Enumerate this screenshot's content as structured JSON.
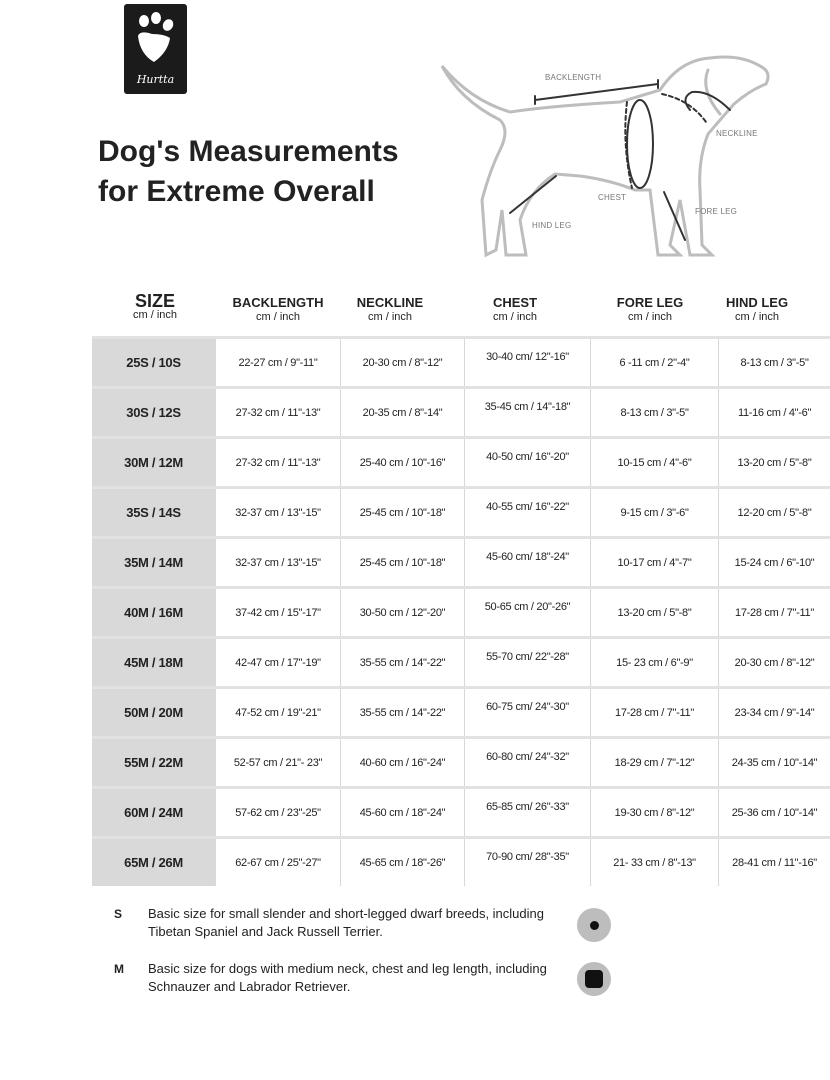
{
  "logo": {
    "brand": "Hurtta"
  },
  "title": {
    "line1": "Dog's Measurements",
    "line2": "for Extreme Overall"
  },
  "diagram_labels": {
    "backlength": "BACKLENGTH",
    "neckline": "NECKLINE",
    "chest": "CHEST",
    "fore_leg": "FORE LEG",
    "hind_leg": "HIND LEG"
  },
  "table": {
    "headers": [
      {
        "label": "SIZE",
        "unit": "cm / inch"
      },
      {
        "label": "BACKLENGTH",
        "unit": "cm / inch"
      },
      {
        "label": "NECKLINE",
        "unit": "cm / inch"
      },
      {
        "label": "CHEST",
        "unit": "cm / inch"
      },
      {
        "label": "FORE LEG",
        "unit": "cm / inch"
      },
      {
        "label": "HIND LEG",
        "unit": "cm / inch"
      }
    ],
    "rows": [
      [
        "25S / 10S",
        "22-27 cm / 9\"-11\"",
        "20-30 cm / 8\"-12\"",
        "30-40 cm/ 12\"-16\"",
        "6 -11 cm / 2\"-4\"",
        "8-13 cm / 3\"-5\""
      ],
      [
        "30S / 12S",
        "27-32 cm / 11\"-13\"",
        "20-35 cm / 8\"-14\"",
        "35-45 cm / 14\"-18\"",
        "8-13 cm / 3\"-5\"",
        "11-16 cm / 4\"-6\""
      ],
      [
        "30M / 12M",
        "27-32 cm / 11\"-13\"",
        "25-40 cm / 10\"-16\"",
        "40-50 cm/ 16\"-20\"",
        "10-15 cm / 4\"-6\"",
        "13-20 cm / 5\"-8\""
      ],
      [
        "35S / 14S",
        "32-37 cm / 13\"-15\"",
        "25-45 cm / 10\"-18\"",
        "40-55 cm/ 16\"-22\"",
        "9-15 cm / 3\"-6\"",
        "12-20 cm / 5\"-8\""
      ],
      [
        "35M / 14M",
        "32-37 cm / 13\"-15\"",
        "25-45 cm / 10\"-18\"",
        "45-60 cm/ 18\"-24\"",
        "10-17 cm / 4\"-7\"",
        "15-24 cm / 6\"-10\""
      ],
      [
        "40M / 16M",
        "37-42 cm / 15\"-17\"",
        "30-50 cm / 12\"-20\"",
        "50-65 cm / 20\"-26\"",
        "13-20 cm / 5\"-8\"",
        "17-28 cm / 7\"-11\""
      ],
      [
        "45M / 18M",
        "42-47 cm / 17\"-19\"",
        "35-55 cm / 14\"-22\"",
        "55-70 cm/ 22\"-28\"",
        "15- 23 cm / 6\"-9\"",
        "20-30 cm / 8\"-12\""
      ],
      [
        "50M / 20M",
        "47-52 cm / 19\"-21\"",
        "35-55 cm / 14\"-22\"",
        "60-75 cm/ 24\"-30\"",
        "17-28 cm / 7\"-11\"",
        "23-34 cm / 9\"-14\""
      ],
      [
        "55M / 22M",
        "52-57 cm / 21\"- 23\"",
        "40-60 cm / 16\"-24\"",
        "60-80 cm/ 24\"-32\"",
        "18-29 cm / 7\"-12\"",
        "24-35 cm / 10\"-14\""
      ],
      [
        "60M / 24M",
        "57-62 cm / 23\"-25\"",
        "45-60 cm / 18\"-24\"",
        "65-85 cm/ 26\"-33\"",
        "19-30 cm / 8\"-12\"",
        "25-36 cm / 10\"-14\""
      ],
      [
        "65M / 26M",
        "62-67 cm / 25\"-27\"",
        "45-65 cm / 18\"-26\"",
        "70-90 cm/ 28\"-35\"",
        "21- 33 cm / 8\"-13\"",
        "28-41 cm / 11\"-16\""
      ]
    ]
  },
  "notes": [
    {
      "key": "S",
      "text": "Basic size for small slender and short-legged dwarf breeds, including Tibetan Spaniel and Jack Russell Terrier.",
      "icon": "small-dot-icon"
    },
    {
      "key": "M",
      "text": "Basic size for dogs with medium neck, chest and leg length, including Schnauzer and Labrador Retriever.",
      "icon": "medium-square-icon"
    }
  ]
}
